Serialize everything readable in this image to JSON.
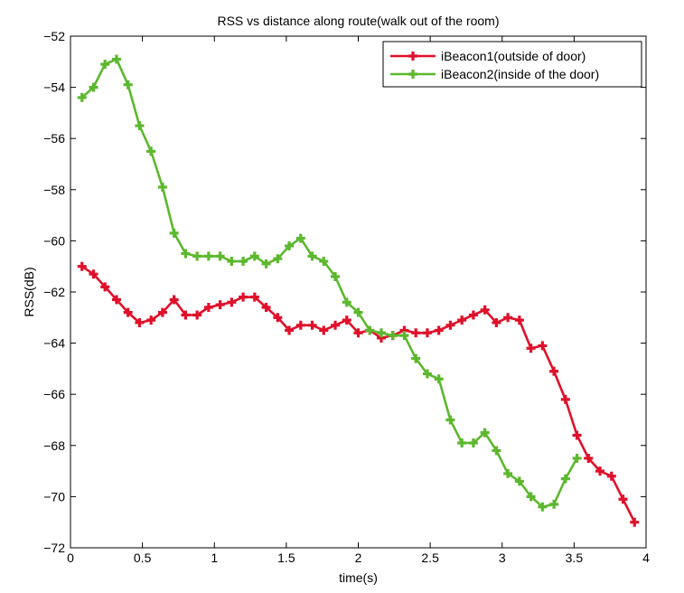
{
  "chart_data": {
    "type": "line",
    "title": "RSS vs distance along route(walk out of the room)",
    "xlabel": "time(s)",
    "ylabel": "RSS(dB)",
    "xlim": [
      0,
      4
    ],
    "ylim": [
      -72,
      -52
    ],
    "xticks": [
      0,
      0.5,
      1,
      1.5,
      2,
      2.5,
      3,
      3.5,
      4
    ],
    "xtick_labels": [
      "0",
      "0.5",
      "1",
      "1.5",
      "2",
      "2.5",
      "3",
      "3.5",
      "4"
    ],
    "yticks": [
      -52,
      -54,
      -56,
      -58,
      -60,
      -62,
      -64,
      -66,
      -68,
      -70,
      -72
    ],
    "ytick_labels": [
      "−52",
      "−54",
      "−56",
      "−58",
      "−60",
      "−62",
      "−64",
      "−66",
      "−68",
      "−70",
      "−72"
    ],
    "grid": false,
    "legend_position": "top-right",
    "series": [
      {
        "name": "iBeacon1(outside of door)",
        "color": "#e0102a",
        "marker": "plus",
        "x": [
          0.08,
          0.16,
          0.24,
          0.32,
          0.4,
          0.48,
          0.56,
          0.64,
          0.72,
          0.8,
          0.88,
          0.96,
          1.04,
          1.12,
          1.2,
          1.28,
          1.36,
          1.44,
          1.52,
          1.6,
          1.68,
          1.76,
          1.84,
          1.92,
          2.0,
          2.08,
          2.16,
          2.24,
          2.32,
          2.4,
          2.48,
          2.56,
          2.64,
          2.72,
          2.8,
          2.88,
          2.96,
          3.04,
          3.12,
          3.2,
          3.28,
          3.36,
          3.44,
          3.52,
          3.6,
          3.68,
          3.76,
          3.84,
          3.92,
          4.0
        ],
        "y": [
          -61.0,
          -61.3,
          -61.8,
          -62.3,
          -62.8,
          -63.2,
          -63.1,
          -62.8,
          -62.3,
          -62.9,
          -62.9,
          -62.6,
          -62.5,
          -62.4,
          -62.2,
          -62.2,
          -62.6,
          -63.0,
          -63.5,
          -63.3,
          -63.3,
          -63.5,
          -63.3,
          -63.1,
          -63.6,
          -63.5,
          -63.8,
          -63.7,
          -63.5,
          -63.6,
          -63.6,
          -63.5,
          -63.3,
          -63.1,
          -62.9,
          -62.7,
          -63.2,
          -63.0,
          -63.1,
          -64.2,
          -64.1,
          -65.1,
          -66.2,
          -67.6,
          -68.5,
          -69.0,
          -69.2,
          -70.1,
          -71.0,
          null
        ]
      },
      {
        "name": "iBeacon2(inside of the door)",
        "color": "#5cb82e",
        "marker": "plus",
        "x": [
          0.08,
          0.16,
          0.24,
          0.32,
          0.4,
          0.48,
          0.56,
          0.64,
          0.72,
          0.8,
          0.88,
          0.96,
          1.04,
          1.12,
          1.2,
          1.28,
          1.36,
          1.44,
          1.52,
          1.6,
          1.68,
          1.76,
          1.84,
          1.92,
          2.0,
          2.08,
          2.16,
          2.24,
          2.32,
          2.4,
          2.48,
          2.56,
          2.64,
          2.72,
          2.8,
          2.88,
          2.96,
          3.04,
          3.12,
          3.2,
          3.28,
          3.36,
          3.44,
          3.52,
          3.6,
          3.68,
          3.76,
          3.84,
          3.92,
          4.0
        ],
        "y": [
          -54.4,
          -54.0,
          -53.1,
          -52.9,
          -53.9,
          -55.5,
          -56.5,
          -57.9,
          -59.7,
          -60.5,
          -60.6,
          -60.6,
          -60.6,
          -60.8,
          -60.8,
          -60.6,
          -60.9,
          -60.7,
          -60.2,
          -59.9,
          -60.6,
          -60.8,
          -61.4,
          -62.4,
          -62.8,
          -63.5,
          -63.6,
          -63.7,
          -63.7,
          -64.6,
          -65.2,
          -65.4,
          -67.0,
          -67.9,
          -67.9,
          -67.5,
          -68.2,
          -69.1,
          -69.4,
          -70.0,
          -70.4,
          -70.3,
          -69.3,
          -68.5,
          null,
          null,
          null,
          null,
          null,
          null
        ]
      }
    ]
  }
}
